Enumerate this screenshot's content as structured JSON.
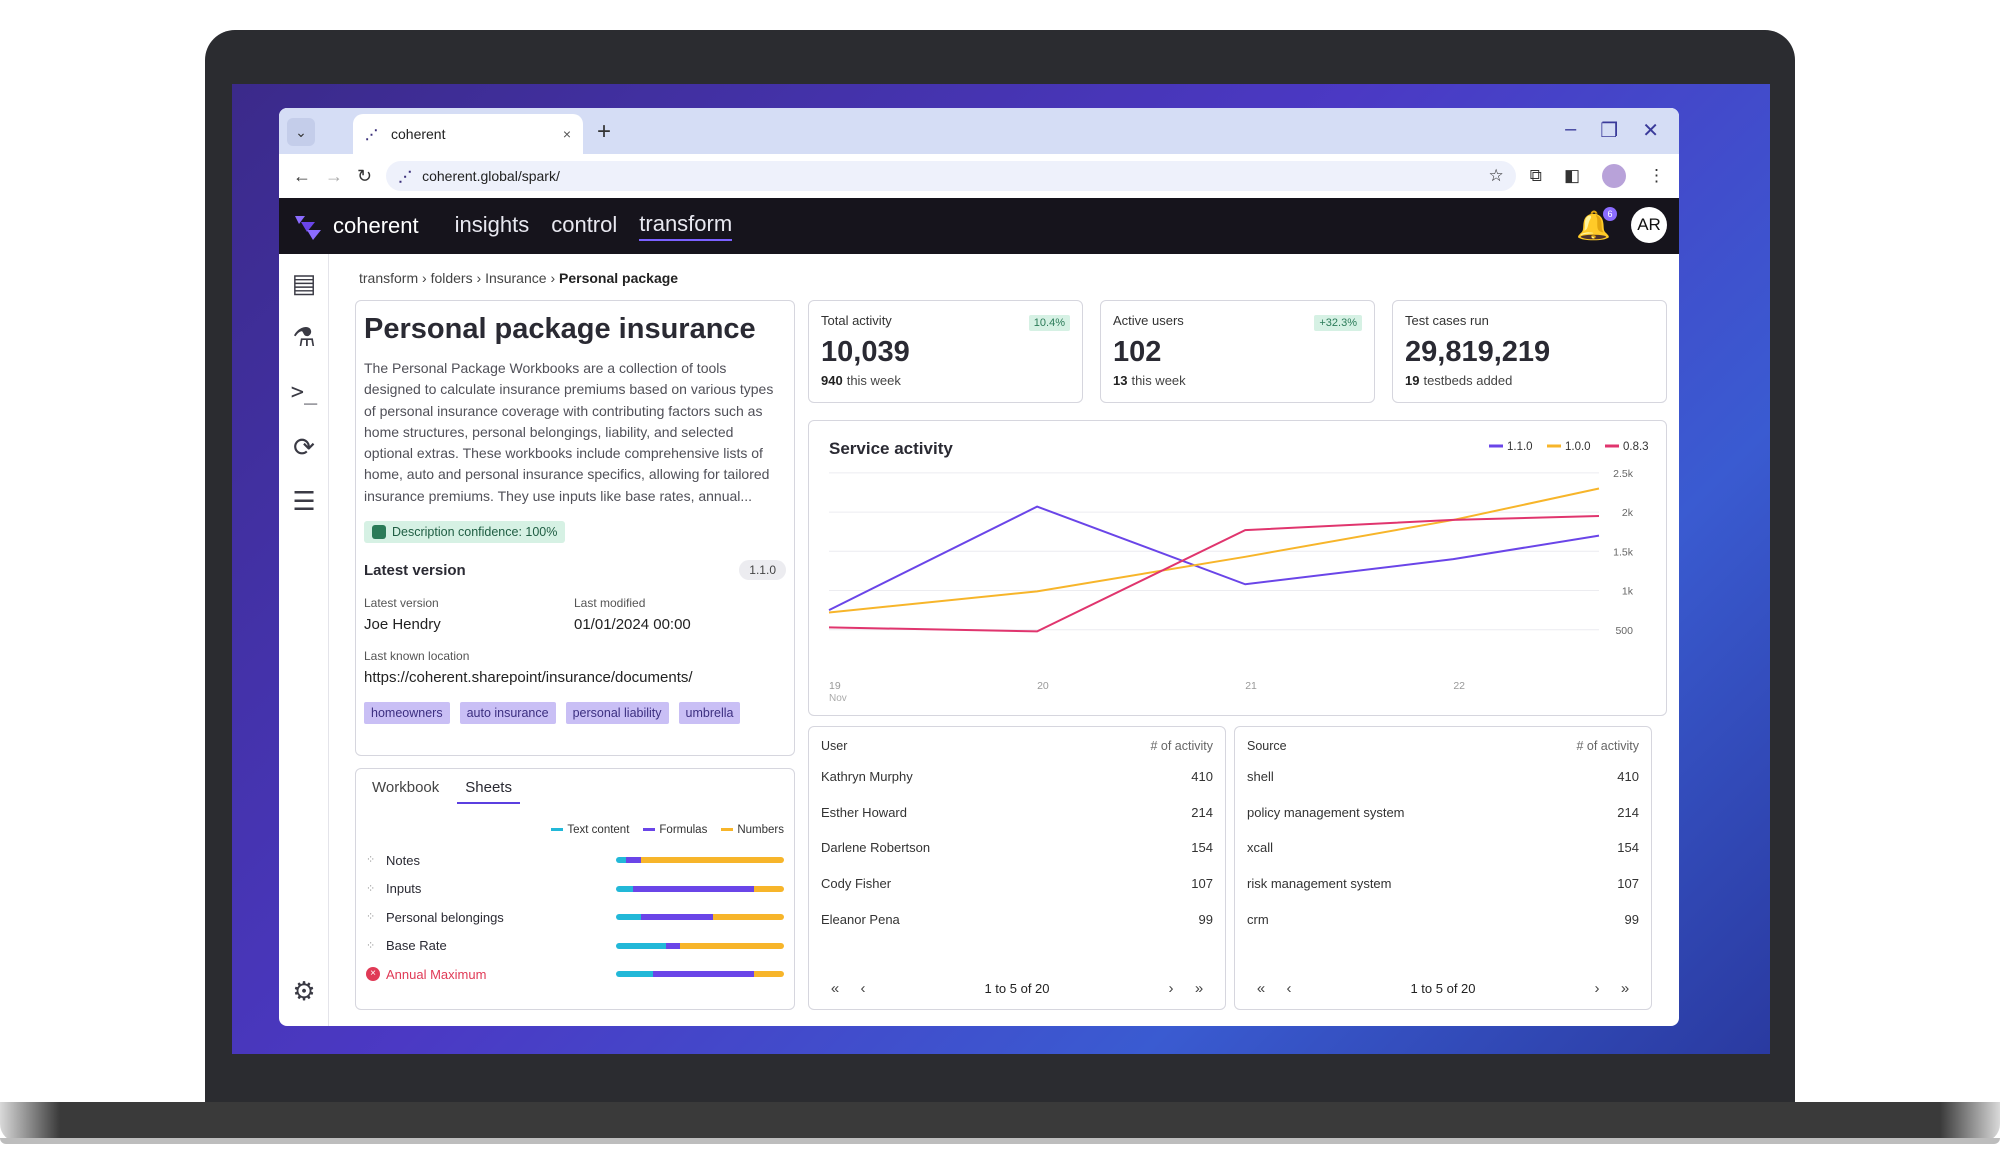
{
  "browser": {
    "tab_title": "coherent",
    "url": "coherent.global/spark/",
    "new_tab_glyph": "+",
    "tab_close_glyph": "×"
  },
  "nav": {
    "brand": "coherent",
    "links": [
      "insights",
      "control",
      "transform"
    ],
    "active": "transform",
    "notification_count": "6",
    "avatar_initials": "AR"
  },
  "breadcrumb": {
    "items": [
      "transform",
      "folders",
      "Insurance"
    ],
    "current": "Personal package",
    "separator": "›"
  },
  "package": {
    "title": "Personal package insurance",
    "description": "The Personal Package Workbooks are a collection of tools designed to calculate insurance premiums based on various types of personal insurance coverage with contributing factors such as home structures, personal belongings, liability, and selected optional extras. These workbooks include comprehensive lists of home, auto and personal insurance specifics, allowing for tailored insurance premiums. They use inputs like base rates, annual...",
    "confidence_label": "Description confidence: 100%",
    "latest_version_heading": "Latest version",
    "version_pill": "1.1.0",
    "latest_version_label": "Latest version",
    "latest_version_value": "Joe Hendry",
    "last_modified_label": "Last modified",
    "last_modified_value": "01/01/2024 00:00",
    "location_label": "Last known location",
    "location_value": "https://coherent.sharepoint/insurance/documents/",
    "tags": [
      "homeowners",
      "auto insurance",
      "personal liability",
      "umbrella"
    ]
  },
  "sheets": {
    "tabs": [
      "Workbook",
      "Sheets"
    ],
    "active_tab": "Sheets",
    "legend": [
      {
        "label": "Text content",
        "color": "#22b8d8"
      },
      {
        "label": "Formulas",
        "color": "#6a45e8"
      },
      {
        "label": "Numbers",
        "color": "#f7b52a"
      }
    ],
    "rows": [
      {
        "name": "Notes",
        "text": 0.06,
        "formulas": 0.09,
        "numbers": 0.85,
        "error": false
      },
      {
        "name": "Inputs",
        "text": 0.1,
        "formulas": 0.72,
        "numbers": 0.18,
        "error": false
      },
      {
        "name": "Personal belongings",
        "text": 0.15,
        "formulas": 0.43,
        "numbers": 0.42,
        "error": false
      },
      {
        "name": "Base Rate",
        "text": 0.3,
        "formulas": 0.08,
        "numbers": 0.62,
        "error": false
      },
      {
        "name": "Annual Maximum",
        "text": 0.22,
        "formulas": 0.6,
        "numbers": 0.18,
        "error": true
      }
    ]
  },
  "stats": [
    {
      "label": "Total activity",
      "value": "10,039",
      "sub_num": "940",
      "sub_text": "this week",
      "change": "10.4%"
    },
    {
      "label": "Active users",
      "value": "102",
      "sub_num": "13",
      "sub_text": "this week",
      "change": "+32.3%"
    },
    {
      "label": "Test cases run",
      "value": "29,819,219",
      "sub_num": "19",
      "sub_text": "testbeds added",
      "change": ""
    }
  ],
  "service": {
    "title": "Service activity"
  },
  "chart_data": {
    "type": "line",
    "title": "Service activity",
    "x": [
      "19",
      "20",
      "21",
      "22",
      "22.7"
    ],
    "x_tick_labels": [
      "19",
      "20",
      "21",
      "22"
    ],
    "x_sub_label": "Nov",
    "y_ticks": [
      "500",
      "1k",
      "1.5k",
      "2k",
      "2.5k"
    ],
    "ylim": [
      0,
      2600
    ],
    "series": [
      {
        "name": "1.1.0",
        "color": "#6a45e8",
        "values": [
          750,
          2070,
          1080,
          1400,
          1700
        ]
      },
      {
        "name": "1.0.0",
        "color": "#f7b52a",
        "values": [
          720,
          990,
          1430,
          1900,
          2300
        ]
      },
      {
        "name": "0.8.3",
        "color": "#e0356e",
        "values": [
          530,
          480,
          1770,
          1900,
          1950
        ]
      }
    ],
    "legend_position": "top-right",
    "grid": true
  },
  "users_table": {
    "col1": "User",
    "col2": "# of activity",
    "rows": [
      {
        "name": "Kathryn Murphy",
        "count": "410"
      },
      {
        "name": "Esther Howard",
        "count": "214"
      },
      {
        "name": "Darlene Robertson",
        "count": "154"
      },
      {
        "name": "Cody Fisher",
        "count": "107"
      },
      {
        "name": "Eleanor Pena",
        "count": "99"
      }
    ],
    "pager": "1 to 5 of 20"
  },
  "source_table": {
    "col1": "Source",
    "col2": "# of activity",
    "rows": [
      {
        "name": "shell",
        "count": "410"
      },
      {
        "name": "policy management system",
        "count": "214"
      },
      {
        "name": "xcall",
        "count": "154"
      },
      {
        "name": "risk management system",
        "count": "107"
      },
      {
        "name": "crm",
        "count": "99"
      }
    ],
    "pager": "1 to 5 of 20"
  },
  "icons": {
    "sidebar": [
      "book-icon",
      "flask-icon",
      "terminal-icon",
      "refresh-clock-icon",
      "list-icon"
    ],
    "sidebar_bottom": "settings-gears-icon"
  }
}
